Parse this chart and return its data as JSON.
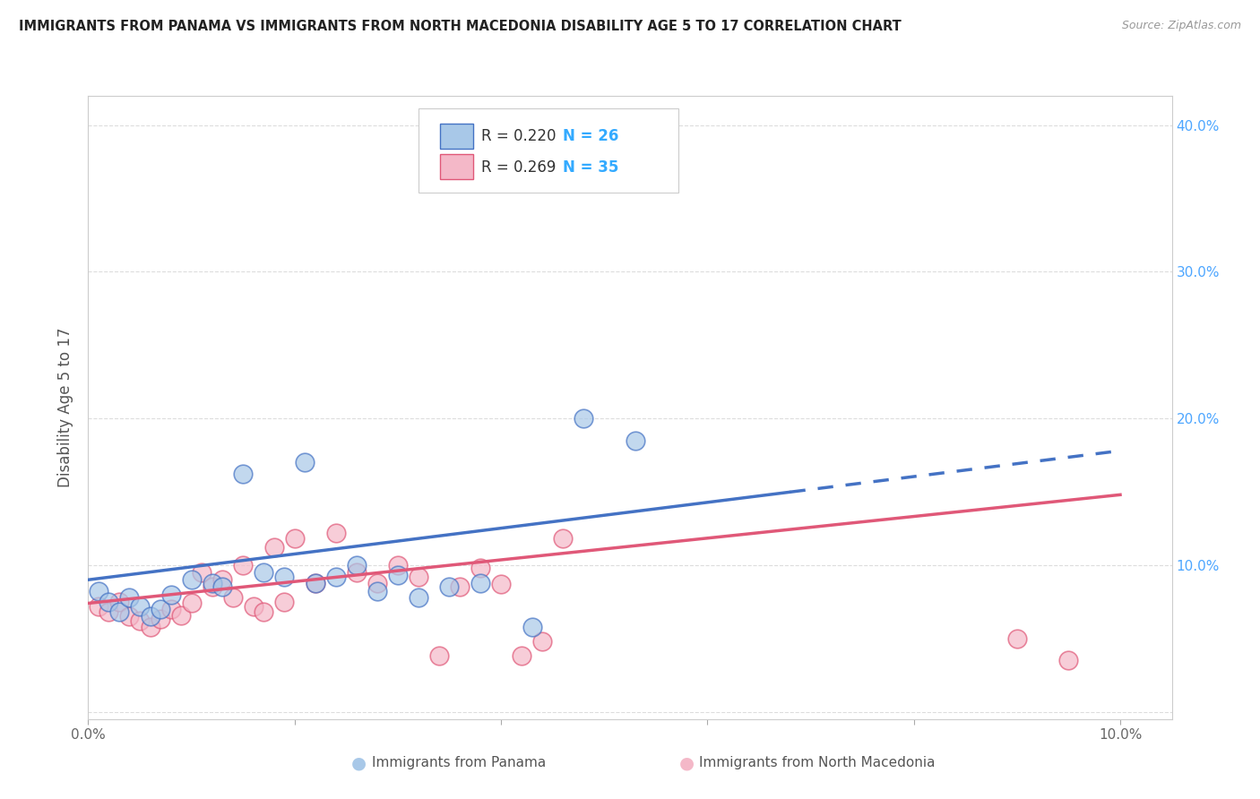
{
  "title": "IMMIGRANTS FROM PANAMA VS IMMIGRANTS FROM NORTH MACEDONIA DISABILITY AGE 5 TO 17 CORRELATION CHART",
  "source": "Source: ZipAtlas.com",
  "ylabel": "Disability Age 5 to 17",
  "x_range": [
    0.0,
    0.105
  ],
  "y_range": [
    -0.005,
    0.42
  ],
  "R1": 0.22,
  "N1": 26,
  "R2": 0.269,
  "N2": 35,
  "color_blue_fill": "#a8c8e8",
  "color_pink_fill": "#f4b8c8",
  "color_blue_line": "#4472c4",
  "color_pink_line": "#e05878",
  "color_blue_text": "#4da6ff",
  "color_pink_text": "#ff6688",
  "color_Ntext": "#33aaff",
  "panama_x": [
    0.001,
    0.002,
    0.003,
    0.004,
    0.005,
    0.006,
    0.007,
    0.008,
    0.01,
    0.012,
    0.013,
    0.015,
    0.017,
    0.019,
    0.021,
    0.022,
    0.024,
    0.026,
    0.028,
    0.03,
    0.032,
    0.035,
    0.038,
    0.043,
    0.048,
    0.053
  ],
  "panama_y": [
    0.082,
    0.075,
    0.068,
    0.078,
    0.072,
    0.065,
    0.07,
    0.08,
    0.09,
    0.088,
    0.085,
    0.162,
    0.095,
    0.092,
    0.17,
    0.088,
    0.092,
    0.1,
    0.082,
    0.093,
    0.078,
    0.085,
    0.088,
    0.058,
    0.2,
    0.185
  ],
  "macedonia_x": [
    0.001,
    0.002,
    0.003,
    0.004,
    0.005,
    0.006,
    0.007,
    0.008,
    0.009,
    0.01,
    0.011,
    0.012,
    0.013,
    0.014,
    0.015,
    0.016,
    0.017,
    0.018,
    0.019,
    0.02,
    0.022,
    0.024,
    0.026,
    0.028,
    0.03,
    0.032,
    0.034,
    0.036,
    0.038,
    0.04,
    0.042,
    0.044,
    0.046,
    0.09,
    0.095
  ],
  "macedonia_y": [
    0.072,
    0.068,
    0.075,
    0.065,
    0.062,
    0.058,
    0.063,
    0.07,
    0.066,
    0.074,
    0.095,
    0.085,
    0.09,
    0.078,
    0.1,
    0.072,
    0.068,
    0.112,
    0.075,
    0.118,
    0.088,
    0.122,
    0.095,
    0.088,
    0.1,
    0.092,
    0.038,
    0.085,
    0.098,
    0.087,
    0.038,
    0.048,
    0.118,
    0.05,
    0.035
  ],
  "blue_line_x0": 0.0,
  "blue_line_y0": 0.09,
  "blue_line_x1": 0.1,
  "blue_line_y1": 0.178,
  "blue_dash_split": 0.068,
  "pink_line_x0": 0.0,
  "pink_line_y0": 0.074,
  "pink_line_x1": 0.1,
  "pink_line_y1": 0.148,
  "y_ticks": [
    0.0,
    0.1,
    0.2,
    0.3,
    0.4
  ],
  "y_tick_labels": [
    "",
    "10.0%",
    "20.0%",
    "30.0%",
    "40.0%"
  ],
  "x_ticks": [
    0.0,
    0.02,
    0.04,
    0.06,
    0.08,
    0.1
  ],
  "x_tick_labels": [
    "0.0%",
    "",
    "",
    "",
    "",
    "10.0%"
  ],
  "legend1_label": "Immigrants from Panama",
  "legend2_label": "Immigrants from North Macedonia",
  "grid_color": "#dddddd",
  "spine_color": "#cccccc"
}
